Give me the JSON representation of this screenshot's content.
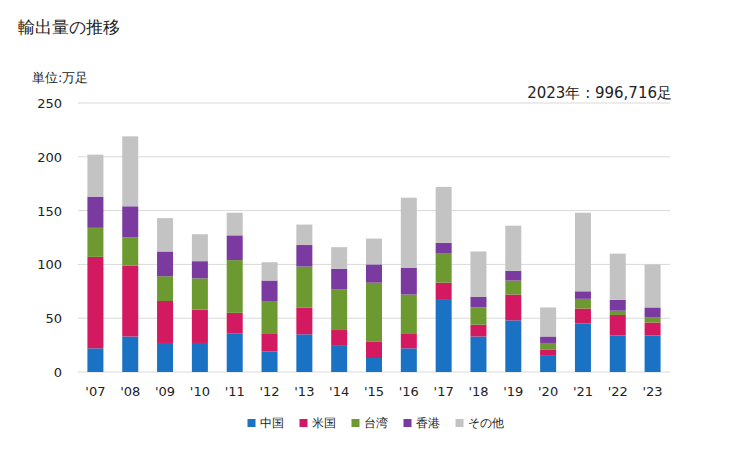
{
  "chart_data": {
    "type": "bar",
    "stacked": true,
    "title": "輸出量の推移",
    "y_label": "単位:万足",
    "annotation": "2023年 : 996,716足",
    "categories": [
      "'07",
      "'08",
      "'09",
      "'10",
      "'11",
      "'12",
      "'13",
      "'14",
      "'15",
      "'16",
      "'17",
      "'18",
      "'19",
      "'20",
      "'21",
      "'22",
      "'23"
    ],
    "series": [
      {
        "name": "中国",
        "color": "#1a72c4",
        "values": [
          22,
          33,
          27,
          27,
          36,
          19,
          35,
          25,
          13,
          22,
          67,
          33,
          48,
          15,
          45,
          34,
          34
        ]
      },
      {
        "name": "米国",
        "color": "#d3195f",
        "values": [
          85,
          66,
          39,
          31,
          19,
          17,
          25,
          14,
          15,
          14,
          16,
          11,
          24,
          6,
          14,
          19,
          12
        ]
      },
      {
        "name": "台湾",
        "color": "#6c9a30",
        "values": [
          27,
          26,
          23,
          29,
          49,
          30,
          38,
          38,
          55,
          36,
          27,
          16,
          13,
          6,
          9,
          4,
          5
        ]
      },
      {
        "name": "香港",
        "color": "#7a3aa0",
        "values": [
          29,
          29,
          23,
          16,
          23,
          19,
          20,
          19,
          17,
          25,
          10,
          10,
          9,
          6,
          7,
          10,
          9
        ]
      },
      {
        "name": "その他",
        "color": "#c3c3c3",
        "values": [
          39,
          65,
          31,
          25,
          21,
          17,
          19,
          20,
          24,
          65,
          52,
          42,
          42,
          27,
          73,
          43,
          40
        ]
      }
    ],
    "ylim": [
      0,
      250
    ],
    "yticks": [
      0,
      50,
      100,
      150,
      200,
      250
    ],
    "grid": true,
    "legend": "bottom"
  }
}
